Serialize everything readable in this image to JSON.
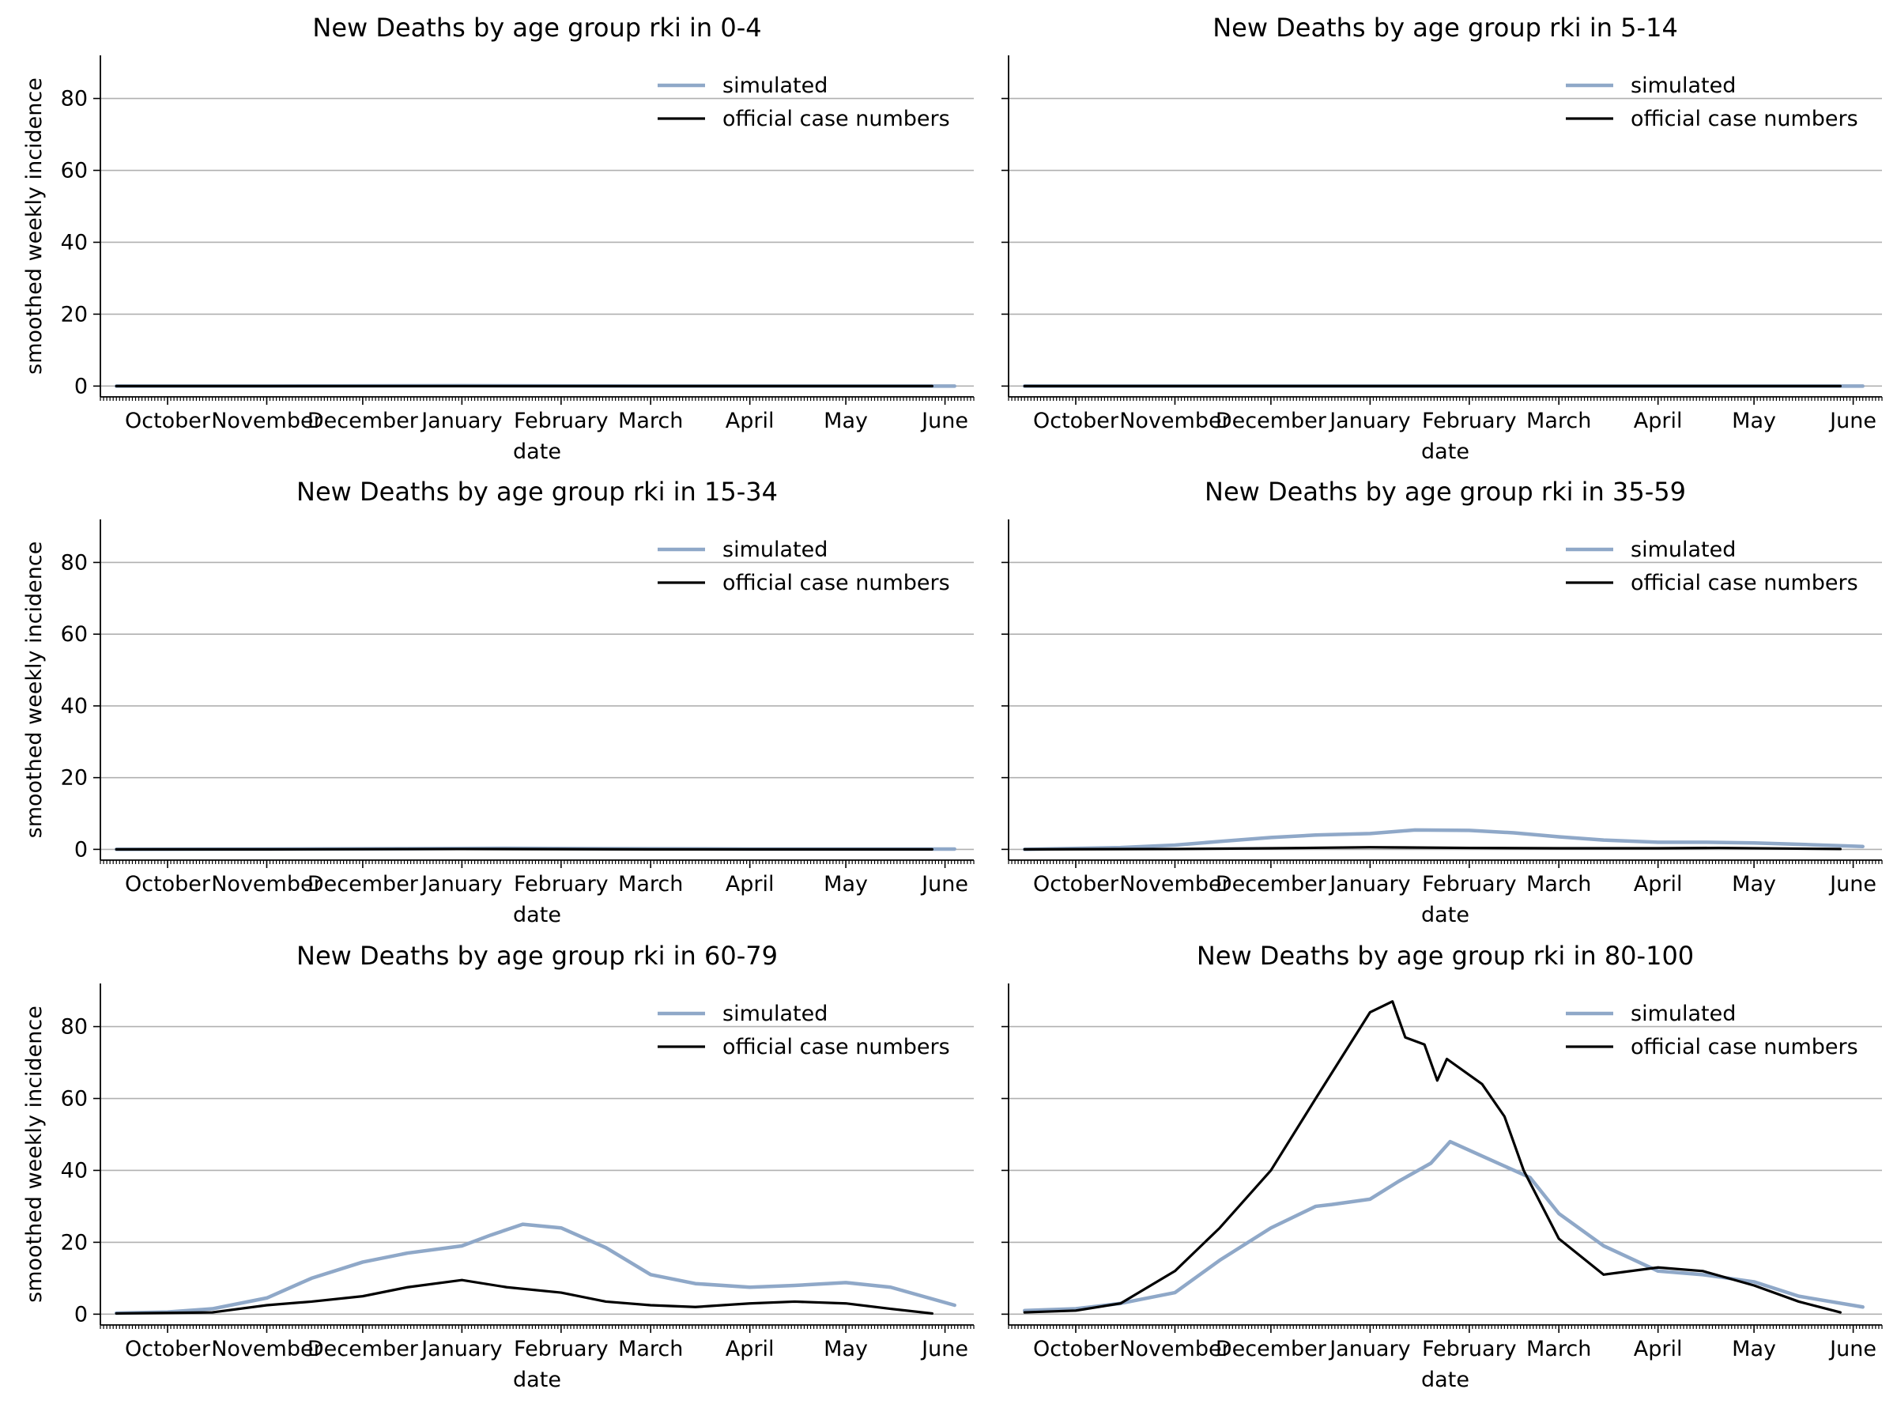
{
  "figure": {
    "legend_simulated": "simulated",
    "legend_official": "official case numbers",
    "xlabel": "date",
    "ylabel": "smoothed weekly incidence",
    "colors": {
      "simulated": "#8fa8c8",
      "official": "#000000",
      "grid": "#b0b0b0"
    }
  },
  "chart_data": [
    {
      "type": "line",
      "title": "New Deaths by age group rki in 0-4",
      "xlabel": "date",
      "ylabel": "smoothed weekly incidence",
      "x_ticks": [
        "October",
        "November",
        "December",
        "January",
        "February",
        "March",
        "April",
        "May",
        "June"
      ],
      "y_ticks": [
        0,
        20,
        40,
        60,
        80
      ],
      "ylim": [
        -3,
        92
      ],
      "xlim": [
        "2020-09-10",
        "2021-06-10"
      ],
      "grid": "horizontal",
      "legend": "top-right",
      "series": [
        {
          "name": "simulated",
          "x": [
            "2020-09-15",
            "2020-11-01",
            "2021-01-01",
            "2021-03-01",
            "2021-06-04"
          ],
          "y": [
            0,
            0,
            0.1,
            0,
            0
          ]
        },
        {
          "name": "official case numbers",
          "x": [
            "2020-09-15",
            "2020-11-01",
            "2021-01-01",
            "2021-03-01",
            "2021-05-28"
          ],
          "y": [
            0,
            0,
            0,
            0,
            0
          ]
        }
      ]
    },
    {
      "type": "line",
      "title": "New Deaths by age group rki in 5-14",
      "xlabel": "date",
      "ylabel": "",
      "x_ticks": [
        "October",
        "November",
        "December",
        "January",
        "February",
        "March",
        "April",
        "May",
        "June"
      ],
      "y_ticks": [
        0,
        20,
        40,
        60,
        80
      ],
      "ylim": [
        -3,
        92
      ],
      "xlim": [
        "2020-09-10",
        "2021-06-10"
      ],
      "grid": "horizontal",
      "legend": "top-right",
      "series": [
        {
          "name": "simulated",
          "x": [
            "2020-09-15",
            "2020-11-01",
            "2021-01-01",
            "2021-03-01",
            "2021-06-04"
          ],
          "y": [
            0,
            0,
            0,
            0,
            0
          ]
        },
        {
          "name": "official case numbers",
          "x": [
            "2020-09-15",
            "2020-11-01",
            "2021-01-01",
            "2021-03-01",
            "2021-05-28"
          ],
          "y": [
            0,
            0,
            0,
            0,
            0
          ]
        }
      ]
    },
    {
      "type": "line",
      "title": "New Deaths by age group rki in 15-34",
      "xlabel": "date",
      "ylabel": "smoothed weekly incidence",
      "x_ticks": [
        "October",
        "November",
        "December",
        "January",
        "February",
        "March",
        "April",
        "May",
        "June"
      ],
      "y_ticks": [
        0,
        20,
        40,
        60,
        80
      ],
      "ylim": [
        -3,
        92
      ],
      "xlim": [
        "2020-09-10",
        "2021-06-10"
      ],
      "grid": "horizontal",
      "legend": "top-right",
      "series": [
        {
          "name": "simulated",
          "x": [
            "2020-09-15",
            "2020-11-01",
            "2020-12-15",
            "2021-01-15",
            "2021-02-15",
            "2021-04-01",
            "2021-06-04"
          ],
          "y": [
            0,
            0.1,
            0.2,
            0.3,
            0.2,
            0.1,
            0.1
          ]
        },
        {
          "name": "official case numbers",
          "x": [
            "2020-09-15",
            "2020-11-01",
            "2021-01-01",
            "2021-03-01",
            "2021-05-28"
          ],
          "y": [
            0,
            0,
            0.1,
            0,
            0
          ]
        }
      ]
    },
    {
      "type": "line",
      "title": "New Deaths by age group rki in 35-59",
      "xlabel": "date",
      "ylabel": "",
      "x_ticks": [
        "October",
        "November",
        "December",
        "January",
        "February",
        "March",
        "April",
        "May",
        "June"
      ],
      "y_ticks": [
        0,
        20,
        40,
        60,
        80
      ],
      "ylim": [
        -3,
        92
      ],
      "xlim": [
        "2020-09-10",
        "2021-06-10"
      ],
      "grid": "horizontal",
      "legend": "top-right",
      "series": [
        {
          "name": "simulated",
          "x": [
            "2020-09-15",
            "2020-10-15",
            "2020-11-01",
            "2020-11-15",
            "2020-12-01",
            "2020-12-15",
            "2021-01-01",
            "2021-01-15",
            "2021-02-01",
            "2021-02-15",
            "2021-03-01",
            "2021-03-15",
            "2021-04-01",
            "2021-04-15",
            "2021-05-01",
            "2021-05-15",
            "2021-06-04"
          ],
          "y": [
            0,
            0.5,
            1.2,
            2.2,
            3.3,
            4.0,
            4.4,
            5.4,
            5.3,
            4.6,
            3.5,
            2.6,
            2.0,
            2.0,
            1.8,
            1.4,
            0.8
          ]
        },
        {
          "name": "official case numbers",
          "x": [
            "2020-09-15",
            "2020-11-01",
            "2020-12-01",
            "2021-01-01",
            "2021-02-01",
            "2021-03-01",
            "2021-04-01",
            "2021-04-20",
            "2021-05-28"
          ],
          "y": [
            0,
            0.1,
            0.3,
            0.6,
            0.4,
            0.3,
            0.3,
            0.4,
            0.1
          ]
        }
      ]
    },
    {
      "type": "line",
      "title": "New Deaths by age group rki in 60-79",
      "xlabel": "date",
      "ylabel": "smoothed weekly incidence",
      "x_ticks": [
        "October",
        "November",
        "December",
        "January",
        "February",
        "March",
        "April",
        "May",
        "June"
      ],
      "y_ticks": [
        0,
        20,
        40,
        60,
        80
      ],
      "ylim": [
        -3,
        92
      ],
      "xlim": [
        "2020-09-10",
        "2021-06-10"
      ],
      "grid": "horizontal",
      "legend": "top-right",
      "series": [
        {
          "name": "simulated",
          "x": [
            "2020-09-15",
            "2020-10-01",
            "2020-10-15",
            "2020-11-01",
            "2020-11-15",
            "2020-12-01",
            "2020-12-15",
            "2021-01-01",
            "2021-01-10",
            "2021-01-20",
            "2021-02-01",
            "2021-02-15",
            "2021-03-01",
            "2021-03-15",
            "2021-04-01",
            "2021-04-15",
            "2021-05-01",
            "2021-05-15",
            "2021-06-04"
          ],
          "y": [
            0.3,
            0.6,
            1.5,
            4.5,
            10.0,
            14.5,
            17.0,
            19.0,
            22.0,
            25.0,
            24.0,
            18.5,
            11.0,
            8.5,
            7.5,
            8.0,
            8.8,
            7.5,
            2.5
          ]
        },
        {
          "name": "official case numbers",
          "x": [
            "2020-09-15",
            "2020-10-15",
            "2020-11-01",
            "2020-11-15",
            "2020-12-01",
            "2020-12-15",
            "2021-01-01",
            "2021-01-15",
            "2021-02-01",
            "2021-02-15",
            "2021-03-01",
            "2021-03-15",
            "2021-04-01",
            "2021-04-15",
            "2021-05-01",
            "2021-05-15",
            "2021-05-28"
          ],
          "y": [
            0.2,
            0.5,
            2.5,
            3.5,
            5.0,
            7.5,
            9.5,
            7.5,
            6.0,
            3.5,
            2.5,
            2.0,
            3.0,
            3.5,
            3.0,
            1.5,
            0.2
          ]
        }
      ]
    },
    {
      "type": "line",
      "title": "New Deaths by age group rki in 80-100",
      "xlabel": "date",
      "ylabel": "",
      "x_ticks": [
        "October",
        "November",
        "December",
        "January",
        "February",
        "March",
        "April",
        "May",
        "June"
      ],
      "y_ticks": [
        0,
        20,
        40,
        60,
        80
      ],
      "ylim": [
        -3,
        92
      ],
      "xlim": [
        "2020-09-10",
        "2021-06-10"
      ],
      "grid": "horizontal",
      "legend": "top-right",
      "series": [
        {
          "name": "simulated",
          "x": [
            "2020-09-15",
            "2020-10-01",
            "2020-10-15",
            "2020-11-01",
            "2020-11-15",
            "2020-12-01",
            "2020-12-15",
            "2020-12-20",
            "2021-01-01",
            "2021-01-10",
            "2021-01-20",
            "2021-01-26",
            "2021-02-05",
            "2021-02-20",
            "2021-03-01",
            "2021-03-15",
            "2021-04-01",
            "2021-04-15",
            "2021-05-01",
            "2021-05-15",
            "2021-06-04"
          ],
          "y": [
            1.0,
            1.5,
            3.0,
            6.0,
            15.0,
            24.0,
            30.0,
            30.5,
            32.0,
            37.0,
            42.0,
            48.0,
            44.0,
            38.0,
            28.0,
            19.0,
            12.0,
            11.0,
            9.0,
            5.0,
            2.0
          ]
        },
        {
          "name": "official case numbers",
          "x": [
            "2020-09-15",
            "2020-10-01",
            "2020-10-15",
            "2020-11-01",
            "2020-11-15",
            "2020-12-01",
            "2020-12-15",
            "2021-01-01",
            "2021-01-08",
            "2021-01-12",
            "2021-01-18",
            "2021-01-22",
            "2021-01-25",
            "2021-02-05",
            "2021-02-12",
            "2021-02-18",
            "2021-03-01",
            "2021-03-15",
            "2021-04-01",
            "2021-04-15",
            "2021-05-01",
            "2021-05-15",
            "2021-05-28"
          ],
          "y": [
            0.5,
            1.0,
            3.0,
            12.0,
            24.0,
            40.0,
            60.0,
            84.0,
            87.0,
            77.0,
            75.0,
            65.0,
            71.0,
            64.0,
            55.0,
            40.0,
            21.0,
            11.0,
            13.0,
            12.0,
            8.0,
            3.5,
            0.5
          ]
        }
      ]
    }
  ]
}
